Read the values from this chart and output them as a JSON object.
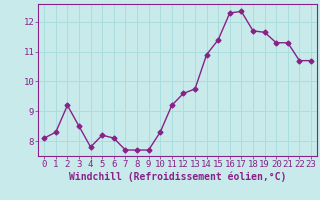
{
  "x": [
    0,
    1,
    2,
    3,
    4,
    5,
    6,
    7,
    8,
    9,
    10,
    11,
    12,
    13,
    14,
    15,
    16,
    17,
    18,
    19,
    20,
    21,
    22,
    23
  ],
  "y": [
    8.1,
    8.3,
    9.2,
    8.5,
    7.8,
    8.2,
    8.1,
    7.7,
    7.7,
    7.7,
    8.3,
    9.2,
    9.6,
    9.75,
    10.9,
    11.4,
    12.3,
    12.35,
    11.7,
    11.65,
    11.3,
    11.3,
    10.7,
    10.7
  ],
  "line_color": "#882288",
  "marker": "D",
  "marker_size": 2.5,
  "bg_color": "#c8eaea",
  "grid_color": "#aadddd",
  "xlabel": "Windchill (Refroidissement éolien,°C)",
  "xlabel_color": "#882288",
  "tick_color": "#882288",
  "ylim": [
    7.5,
    12.6
  ],
  "xlim": [
    -0.5,
    23.5
  ],
  "yticks": [
    8,
    9,
    10,
    11,
    12
  ],
  "xticks": [
    0,
    1,
    2,
    3,
    4,
    5,
    6,
    7,
    8,
    9,
    10,
    11,
    12,
    13,
    14,
    15,
    16,
    17,
    18,
    19,
    20,
    21,
    22,
    23
  ],
  "linewidth": 1.0,
  "xlabel_fontsize": 7,
  "tick_fontsize": 6.5
}
